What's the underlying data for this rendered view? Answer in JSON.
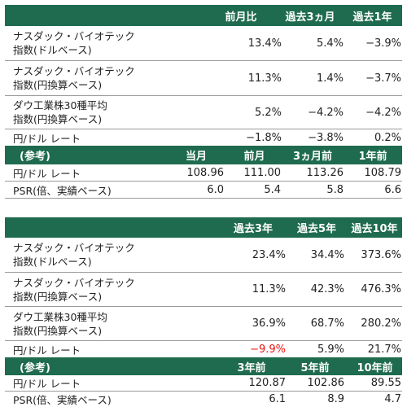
{
  "table1": {
    "header": [
      "",
      "前月比",
      "過去3ヵ月",
      "過去1年"
    ],
    "rows": [
      {
        "label": [
          "ナスダック・バイオテック",
          "指数(ドルベース)"
        ],
        "values": [
          "13.4%",
          "5.4%",
          "−3.9%"
        ]
      },
      {
        "label": [
          "ナスダック・バイオテック",
          "指数(円換算ベース)"
        ],
        "values": [
          "11.3%",
          "1.4%",
          "−3.7%"
        ]
      },
      {
        "label": [
          "ダウ工業株30種平均",
          "指数(円換算ベース)"
        ],
        "values": [
          "5.2%",
          "−4.2%",
          "−4.2%"
        ]
      },
      {
        "label": [
          "円/ドル レート"
        ],
        "values": [
          "−1.8%",
          "−3.8%",
          "0.2%"
        ]
      }
    ],
    "ref_header": [
      "(参考)",
      "当月",
      "前月",
      "3ヵ月前",
      "1年前"
    ],
    "ref_rows": [
      {
        "label": "円/ドル レート",
        "values": [
          "108.96",
          "111.00",
          "113.26",
          "108.79"
        ]
      },
      {
        "label": "PSR(倍、実績ベース)",
        "values": [
          "6.0",
          "5.4",
          "5.8",
          "6.6"
        ]
      }
    ]
  },
  "table2": {
    "header": [
      "",
      "過去3年",
      "過去5年",
      "過去10年"
    ],
    "rows": [
      {
        "label": [
          "ナスダック・バイオテック",
          "指数(ドルベース)"
        ],
        "values": [
          "23.4%",
          "34.4%",
          "373.6%"
        ]
      },
      {
        "label": [
          "ナスダック・バイオテック",
          "指数(円換算ベース)"
        ],
        "values": [
          "11.3%",
          "42.3%",
          "476.3%"
        ]
      },
      {
        "label": [
          "ダウ工業株30種平均",
          "指数(円換算ベース)"
        ],
        "values": [
          "36.9%",
          "68.7%",
          "280.2%"
        ]
      },
      {
        "label": [
          "円/ドル レート"
        ],
        "values": [
          "−9.9%",
          "5.9%",
          "21.7%"
        ]
      }
    ],
    "ref_header": [
      "(参考)",
      "3年前",
      "5年前",
      "10年前"
    ],
    "ref_rows": [
      {
        "label": "円/ドル レート",
        "values": [
          "120.87",
          "102.86",
          "89.55"
        ]
      },
      {
        "label": "PSR(倍、実績ベース)",
        "values": [
          "6.1",
          "8.9",
          "4.7"
        ]
      }
    ]
  },
  "colors": {
    "header_bg": "#1f6b4f",
    "negative": "#e11111"
  }
}
